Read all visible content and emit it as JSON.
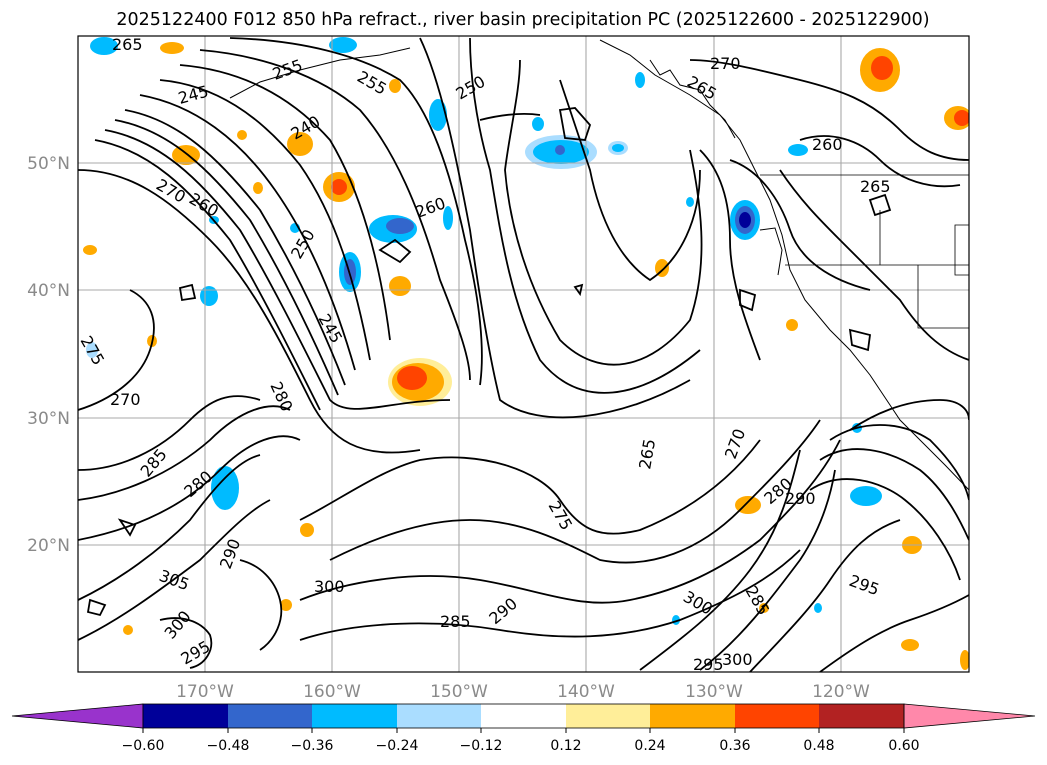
{
  "map": {
    "title": "2025122400 F012 850 hPa refract., river basin precipitation PC (2025122600 - 2025122900)",
    "lat_labels": [
      "50°N",
      "40°N",
      "30°N",
      "20°N"
    ],
    "lon_labels": [
      "170°W",
      "160°W",
      "150°W",
      "140°W",
      "130°W",
      "120°W"
    ],
    "contour_labels": [
      "265",
      "255",
      "245",
      "250",
      "240",
      "270",
      "260",
      "250",
      "245",
      "280",
      "285",
      "290",
      "305",
      "300",
      "295",
      "280",
      "270",
      "275",
      "265",
      "260",
      "255",
      "270",
      "275",
      "285",
      "290",
      "295",
      "300",
      "265",
      "260",
      "270",
      "280",
      "285",
      "290",
      "300",
      "295",
      "300",
      "265"
    ],
    "colorbar": {
      "ticks": [
        "−0.60",
        "−0.48",
        "−0.36",
        "−0.24",
        "−0.12",
        "0.12",
        "0.24",
        "0.36",
        "0.48",
        "0.60"
      ],
      "colors": [
        "#9933cc",
        "#000099",
        "#3366cc",
        "#00bbff",
        "#aaddff",
        "#ffffff",
        "#ffee99",
        "#ffaa00",
        "#ff4400",
        "#b22222",
        "#ff88aa"
      ]
    },
    "fill_colors": {
      "orange": "#ffaa00",
      "red": "#ff4400",
      "yellow": "#ffee99",
      "cyan": "#00bbff",
      "lightblue": "#aaddff",
      "blue": "#3366cc",
      "navy": "#000099"
    }
  }
}
